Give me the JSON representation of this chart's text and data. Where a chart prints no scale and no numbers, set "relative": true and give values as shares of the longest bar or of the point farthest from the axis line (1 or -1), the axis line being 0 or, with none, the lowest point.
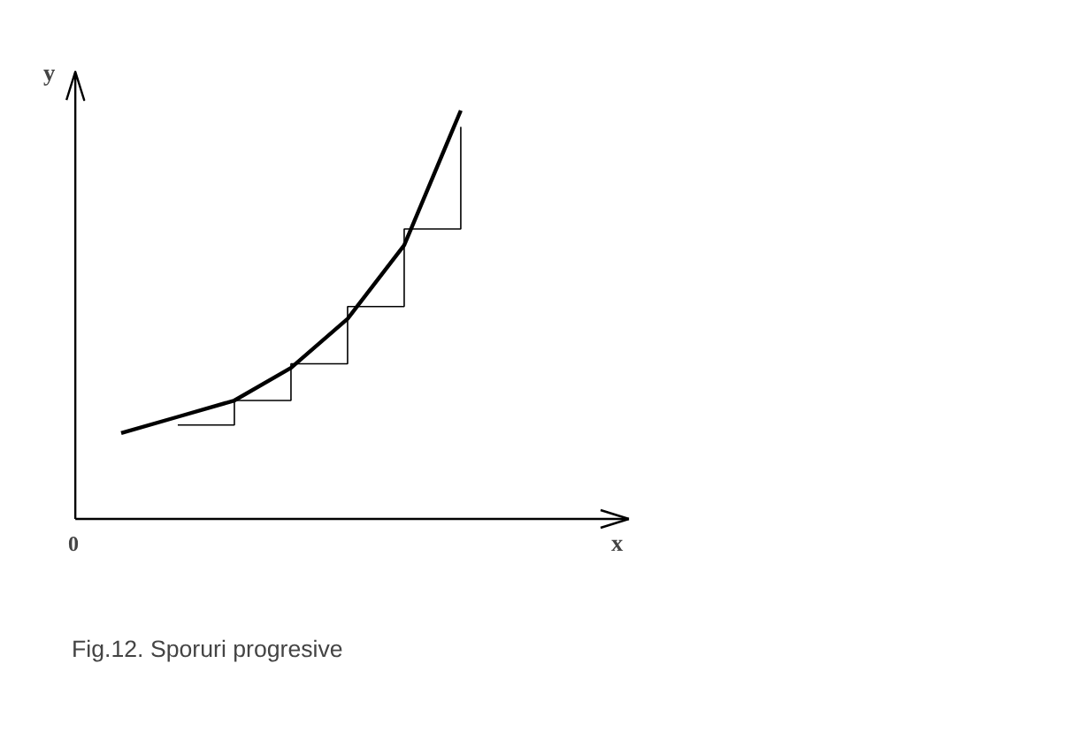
{
  "chart_data": {
    "type": "line",
    "relative": true,
    "xlabel": "x",
    "ylabel": "y",
    "categories": [
      null,
      null,
      null,
      null,
      null,
      null,
      null,
      null,
      null,
      null
    ],
    "series": [
      {
        "type": "line",
        "color": "#000000",
        "values": [
          0.21,
          0.25,
          0.29,
          0.37,
          0.49,
          0.67,
          1.0,
          null,
          null,
          null
        ]
      },
      {
        "type": "step",
        "color": "#000000",
        "values": [
          null,
          0.23,
          0.29,
          0.38,
          0.52,
          0.71,
          0.96,
          null,
          null,
          null
        ]
      }
    ],
    "annotations": [
      "0",
      "Fig.12. Sporuri  progresive"
    ],
    "grid": false
  }
}
